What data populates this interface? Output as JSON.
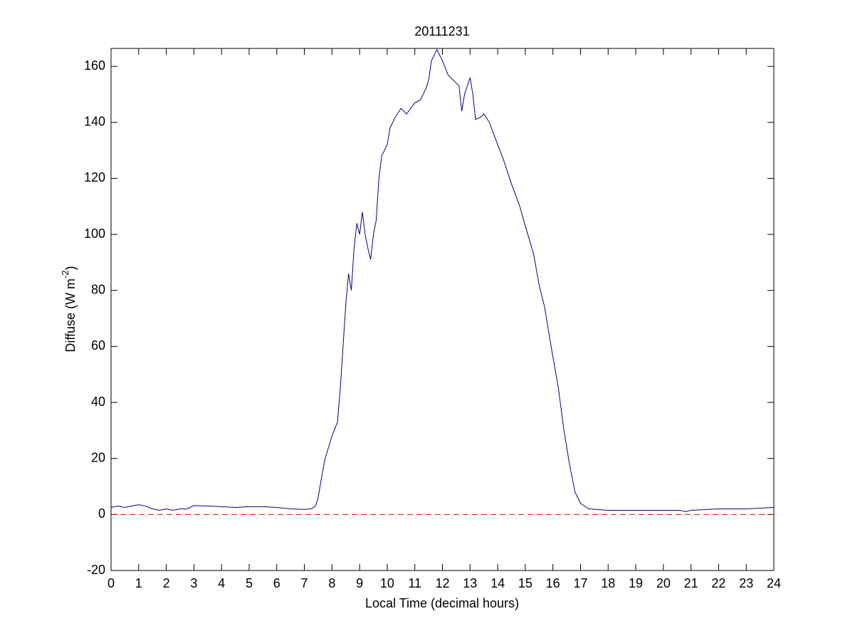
{
  "chart_data": {
    "type": "line",
    "title": "20111231",
    "xlabel": "Local Time (decimal hours)",
    "ylabel": {
      "text": "Diffuse (W m",
      "superscript": "-2",
      "suffix": ")"
    },
    "xlim": [
      0,
      24
    ],
    "xticks": [
      0,
      1,
      2,
      3,
      4,
      5,
      6,
      7,
      8,
      9,
      10,
      11,
      12,
      13,
      14,
      15,
      16,
      17,
      18,
      19,
      20,
      21,
      22,
      23,
      24
    ],
    "ylim": [
      -20,
      166.4
    ],
    "yticks": [
      -20,
      0,
      20,
      40,
      60,
      80,
      100,
      120,
      140,
      160
    ],
    "reference_line": {
      "value": 0,
      "color": "#ff0000",
      "style": "dashed"
    },
    "series": [
      {
        "color": "#00008b",
        "x": [
          0,
          0.25,
          0.5,
          0.75,
          1,
          1.25,
          1.5,
          1.75,
          2,
          2.25,
          2.5,
          2.75,
          3,
          3.5,
          4,
          4.5,
          5,
          5.5,
          6,
          6.5,
          7,
          7.25,
          7.4,
          7.5,
          7.6,
          7.75,
          8,
          8.2,
          8.3,
          8.4,
          8.5,
          8.6,
          8.7,
          8.8,
          8.9,
          9,
          9.1,
          9.2,
          9.3,
          9.4,
          9.5,
          9.6,
          9.7,
          9.8,
          10,
          10.1,
          10.3,
          10.5,
          10.7,
          11,
          11.2,
          11.4,
          11.5,
          11.6,
          11.8,
          12,
          12.2,
          12.4,
          12.6,
          12.7,
          12.8,
          13,
          13.1,
          13.2,
          13.4,
          13.5,
          13.7,
          14,
          14.2,
          14.5,
          14.8,
          15,
          15.3,
          15.5,
          15.7,
          15.9,
          16.2,
          16.4,
          16.6,
          16.8,
          17,
          17.3,
          18,
          19,
          20,
          20.6,
          20.8,
          21,
          22,
          23,
          24
        ],
        "values": [
          2.5,
          3,
          2.5,
          3,
          3.5,
          3,
          2,
          1.5,
          2,
          1.5,
          2,
          2,
          3.2,
          3,
          2.8,
          2.5,
          2.8,
          2.8,
          2.5,
          2,
          1.8,
          2,
          3,
          6,
          12,
          20,
          28,
          33,
          45,
          60,
          75,
          86,
          80,
          95,
          104,
          100,
          108,
          100,
          95,
          91,
          100,
          105,
          120,
          128,
          132,
          138,
          142,
          145,
          143,
          147,
          148,
          152,
          155,
          162,
          166,
          162,
          157,
          155,
          153,
          144,
          150,
          156,
          150,
          141,
          142,
          143,
          140,
          132,
          127,
          118,
          110,
          103,
          93,
          82,
          74,
          62,
          45,
          30,
          18,
          8,
          4,
          2,
          1.5,
          1.5,
          1.5,
          1.5,
          1,
          1.5,
          2,
          2,
          2.5
        ]
      }
    ]
  }
}
